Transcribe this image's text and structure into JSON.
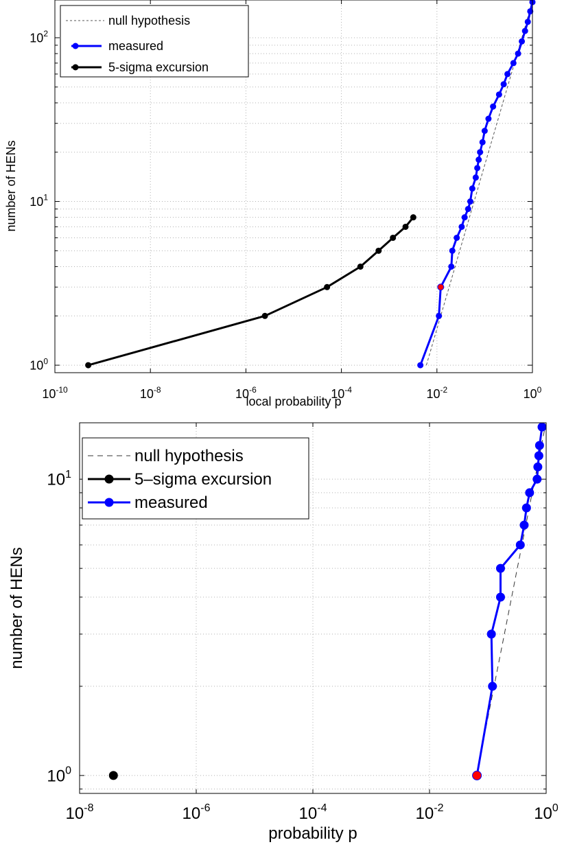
{
  "chart_data": [
    {
      "type": "line",
      "xlabel": "local probability p",
      "ylabel": "number of HENs",
      "xscale": "log",
      "yscale": "log",
      "xlim": [
        1e-10,
        1
      ],
      "ylim": [
        0.9,
        170
      ],
      "x_ticks": [
        {
          "base": "10",
          "exp": "-10"
        },
        {
          "base": "10",
          "exp": "-8"
        },
        {
          "base": "10",
          "exp": "-6"
        },
        {
          "base": "10",
          "exp": "-4"
        },
        {
          "base": "10",
          "exp": "-2"
        },
        {
          "base": "10",
          "exp": "0"
        }
      ],
      "y_ticks": [
        {
          "base": "10",
          "exp": "0"
        },
        {
          "base": "10",
          "exp": "1"
        },
        {
          "base": "10",
          "exp": "2"
        }
      ],
      "grid": true,
      "legend_position": "top-left",
      "series": [
        {
          "name": "null hypothesis",
          "color": "#555555",
          "style": "dashed",
          "x": [
            0.006,
            0.012,
            0.018,
            0.024,
            0.03,
            0.036,
            0.042,
            0.048,
            0.06,
            0.09,
            0.15,
            0.3,
            0.6,
            1.0
          ],
          "y": [
            1,
            2,
            3,
            4,
            5,
            6,
            7,
            8,
            10,
            15,
            25,
            50,
            100,
            167
          ]
        },
        {
          "name": "measured",
          "color": "#0000ff",
          "style": "solid-markers",
          "x": [
            0.0045,
            0.011,
            0.012,
            0.02,
            0.021,
            0.026,
            0.033,
            0.038,
            0.045,
            0.05,
            0.055,
            0.065,
            0.07,
            0.075,
            0.08,
            0.09,
            0.1,
            0.12,
            0.15,
            0.2,
            0.25,
            0.3,
            0.4,
            0.5,
            0.6,
            0.7,
            0.8,
            0.9,
            1.0
          ],
          "y": [
            1,
            2,
            3,
            4,
            5,
            6,
            7,
            8,
            9,
            10,
            12,
            14,
            16,
            18,
            20,
            23,
            27,
            32,
            38,
            45,
            52,
            60,
            70,
            80,
            95,
            110,
            125,
            145,
            165
          ]
        },
        {
          "name": "5-sigma excursion",
          "color": "#000000",
          "style": "solid-markers",
          "x": [
            5e-10,
            2.5e-06,
            5e-05,
            0.00025,
            0.0006,
            0.0012,
            0.0022,
            0.0032
          ],
          "y": [
            1,
            2,
            3,
            4,
            5,
            6,
            7,
            8
          ]
        }
      ],
      "highlight_point": {
        "x": 0.012,
        "y": 3,
        "color": "#ff0000"
      }
    },
    {
      "type": "line",
      "xlabel": "probability p",
      "ylabel": "number of HENs",
      "xscale": "log",
      "yscale": "log",
      "xlim": [
        1e-08,
        1
      ],
      "ylim": [
        0.87,
        15.5
      ],
      "x_ticks": [
        {
          "base": "10",
          "exp": "-8"
        },
        {
          "base": "10",
          "exp": "-6"
        },
        {
          "base": "10",
          "exp": "-4"
        },
        {
          "base": "10",
          "exp": "-2"
        },
        {
          "base": "10",
          "exp": "0"
        }
      ],
      "y_ticks": [
        {
          "base": "10",
          "exp": "0"
        },
        {
          "base": "10",
          "exp": "1"
        }
      ],
      "grid": true,
      "legend_position": "top-left",
      "series": [
        {
          "name": "null hypothesis",
          "color": "#333333",
          "style": "dashed",
          "x": [
            0.064,
            0.128,
            0.192,
            0.256,
            0.32,
            0.384,
            0.448,
            0.512,
            0.576,
            0.64,
            0.704,
            0.768,
            0.832,
            0.896,
            0.96
          ],
          "y": [
            1,
            2,
            3,
            4,
            5,
            6,
            7,
            8,
            9,
            10,
            11,
            12,
            13,
            14,
            15
          ]
        },
        {
          "name": "5–sigma excursion",
          "color": "#000000",
          "style": "solid-markers",
          "x": [
            3.8e-08
          ],
          "y": [
            1
          ]
        },
        {
          "name": "measured",
          "color": "#0000ff",
          "style": "solid-markers",
          "x": [
            0.065,
            0.12,
            0.115,
            0.165,
            0.165,
            0.36,
            0.42,
            0.46,
            0.52,
            0.7,
            0.72,
            0.75,
            0.77,
            0.85
          ],
          "y": [
            1,
            2,
            3,
            4,
            5,
            6,
            7,
            8,
            9,
            10,
            11,
            12,
            13,
            15
          ]
        }
      ],
      "highlight_point": {
        "x": 0.065,
        "y": 1,
        "color": "#ff0000"
      }
    }
  ]
}
